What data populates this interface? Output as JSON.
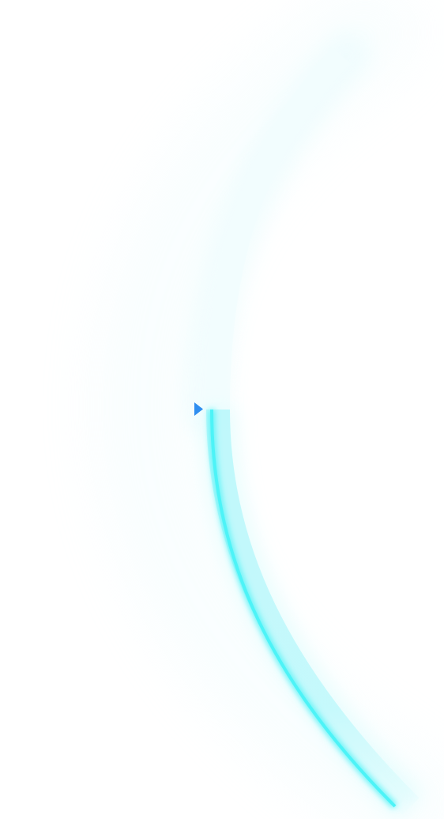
{
  "gauge": {
    "level_fraction": 0.5,
    "colors": {
      "track_glow": "#e6fbfd",
      "track_core": "#f2fdfe",
      "fill_bright": "#4df3f7",
      "fill_soft": "#bff8fb",
      "fill_glow": "#dcfcfd",
      "marker": "#2e8ef0"
    },
    "icons": {
      "marker": "play-triangle-icon"
    }
  }
}
